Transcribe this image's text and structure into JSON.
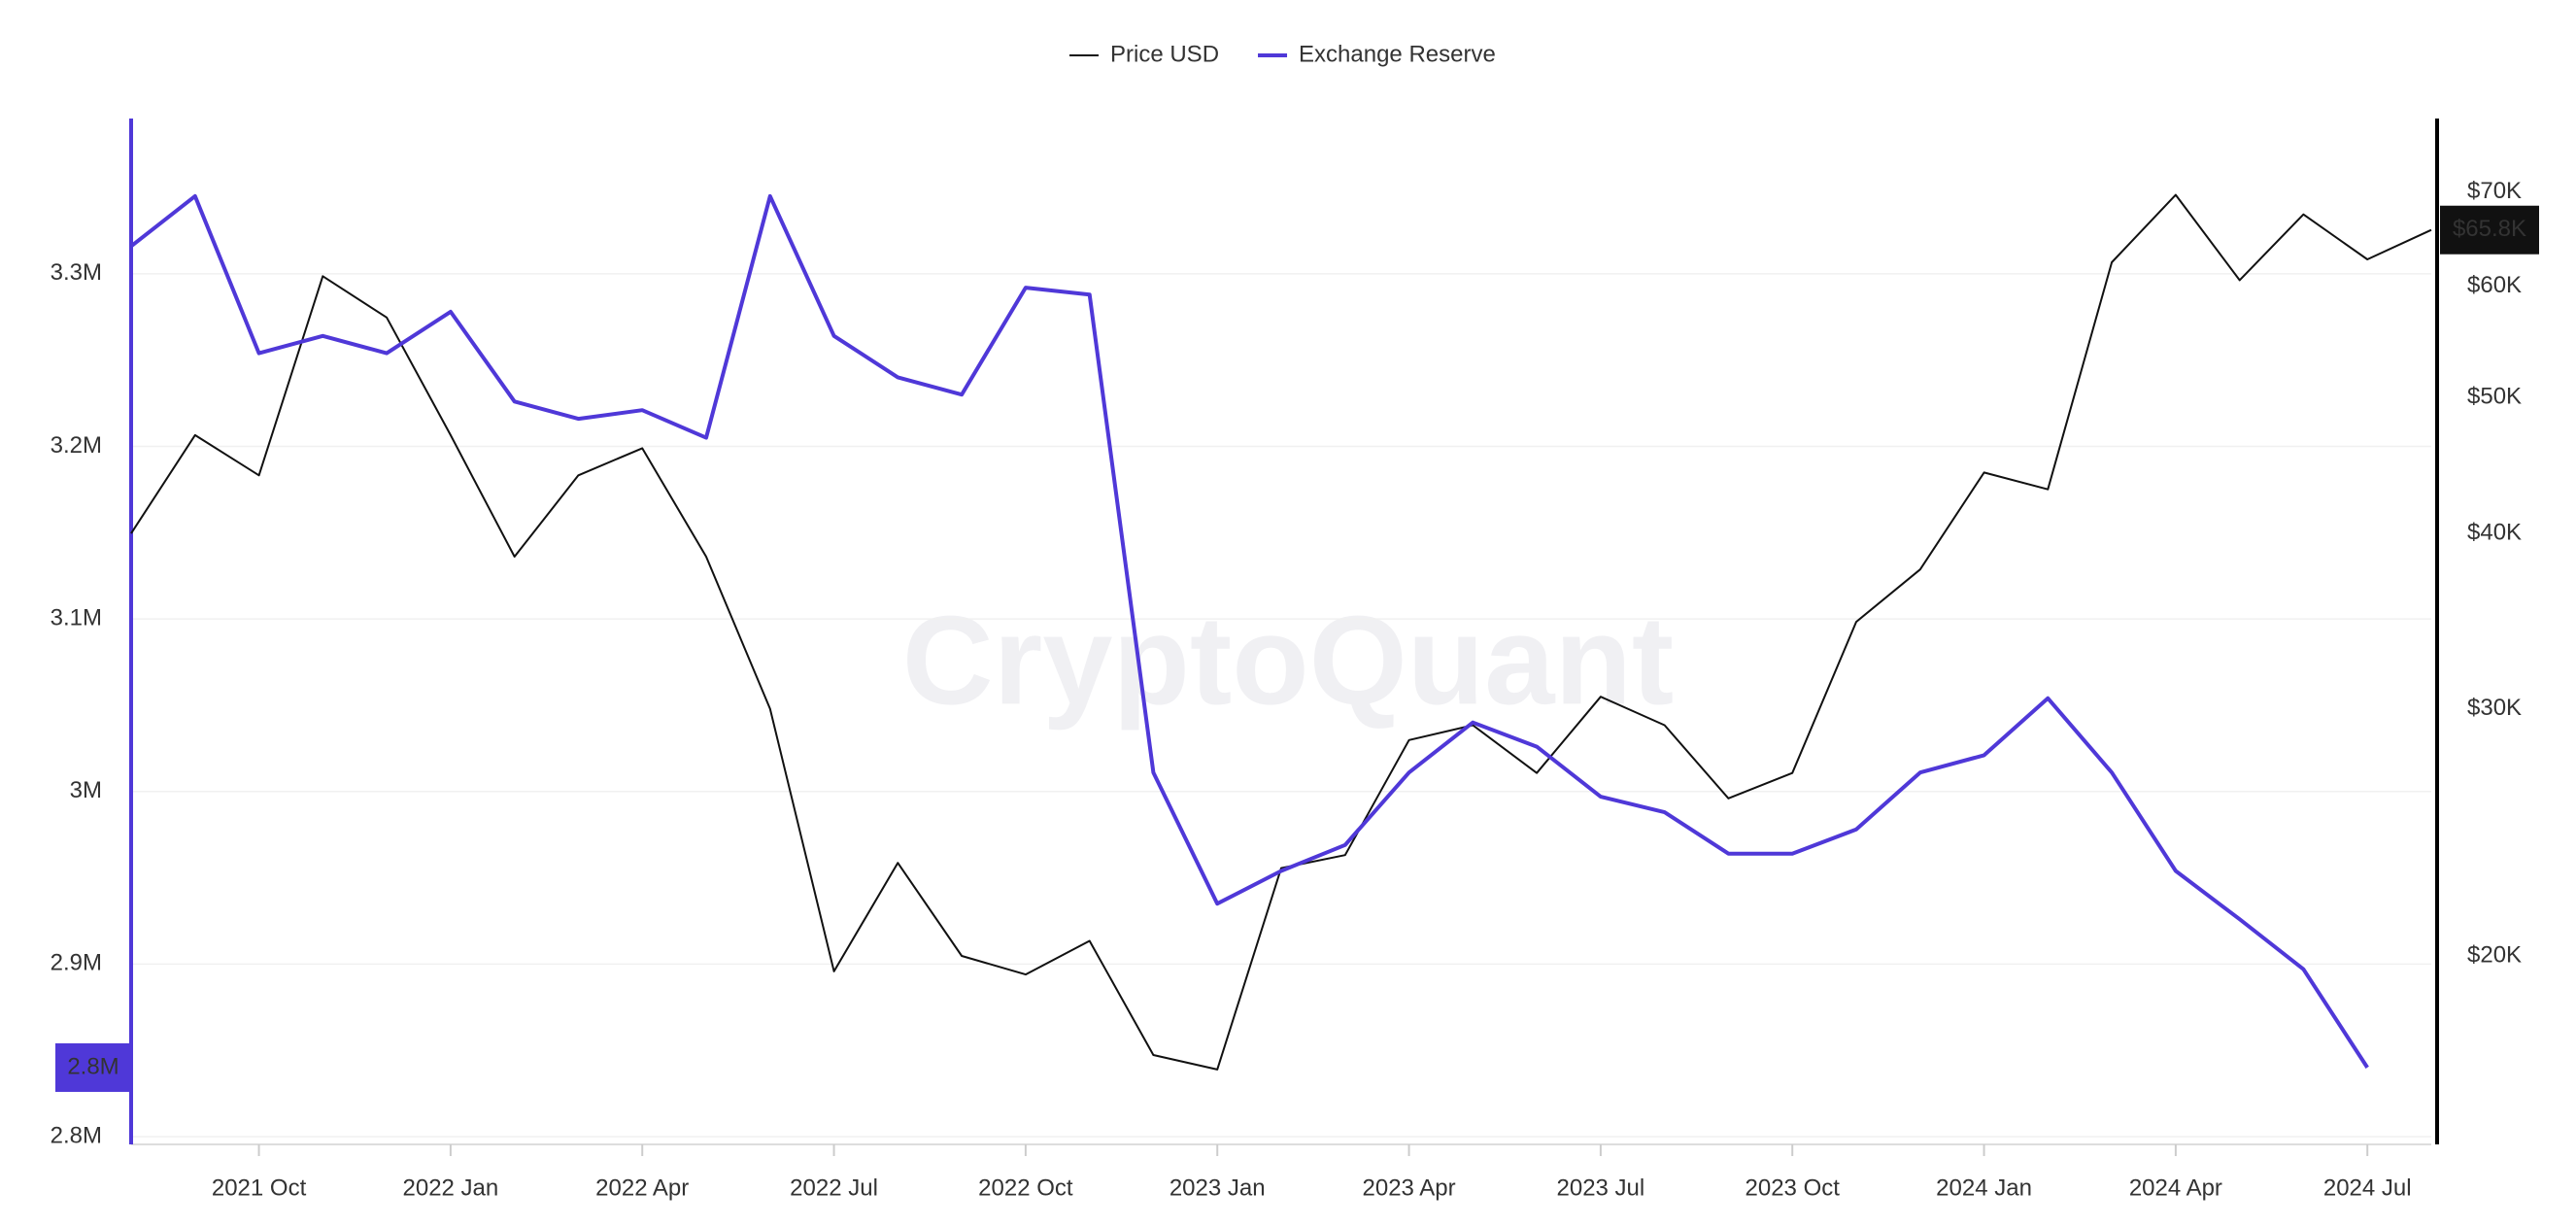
{
  "chart_data": {
    "type": "line",
    "watermark": "CryptoQuant",
    "x": [
      "2021-08",
      "2021-09",
      "2021-10",
      "2021-11",
      "2021-12",
      "2022-01",
      "2022-02",
      "2022-03",
      "2022-04",
      "2022-05",
      "2022-06",
      "2022-07",
      "2022-08",
      "2022-09",
      "2022-10",
      "2022-11",
      "2022-12",
      "2023-01",
      "2023-02",
      "2023-03",
      "2023-04",
      "2023-05",
      "2023-06",
      "2023-07",
      "2023-08",
      "2023-09",
      "2023-10",
      "2023-11",
      "2023-12",
      "2024-01",
      "2024-02",
      "2024-03",
      "2024-04",
      "2024-05",
      "2024-06",
      "2024-07",
      "2024-08"
    ],
    "xlim": [
      "2021-08",
      "2024-08"
    ],
    "xticks": [
      {
        "value": "2021-10",
        "label": "2021 Oct"
      },
      {
        "value": "2022-01",
        "label": "2022 Jan"
      },
      {
        "value": "2022-04",
        "label": "2022 Apr"
      },
      {
        "value": "2022-07",
        "label": "2022 Jul"
      },
      {
        "value": "2022-10",
        "label": "2022 Oct"
      },
      {
        "value": "2023-01",
        "label": "2023 Jan"
      },
      {
        "value": "2023-04",
        "label": "2023 Apr"
      },
      {
        "value": "2023-07",
        "label": "2023 Jul"
      },
      {
        "value": "2023-10",
        "label": "2023 Oct"
      },
      {
        "value": "2024-01",
        "label": "2024 Jan"
      },
      {
        "value": "2024-04",
        "label": "2024 Apr"
      },
      {
        "value": "2024-07",
        "label": "2024 Jul"
      }
    ],
    "series": [
      {
        "name": "Price USD",
        "color": "#111111",
        "axis": "y2",
        "values": [
          40000,
          47000,
          44000,
          61000,
          57000,
          47000,
          38500,
          44000,
          46000,
          38500,
          30000,
          19500,
          23300,
          20000,
          19400,
          20500,
          17000,
          16600,
          23100,
          23600,
          28500,
          29200,
          27000,
          30600,
          29200,
          25900,
          27000,
          34600,
          37700,
          44200,
          43000,
          62400,
          69700,
          60600,
          67500,
          62700,
          65800
        ]
      },
      {
        "name": "Exchange Reserve",
        "color": "#4f38d8",
        "axis": "y",
        "values": [
          3316000,
          3345000,
          3254000,
          3264000,
          3254000,
          3278000,
          3226000,
          3216000,
          3221000,
          3205000,
          3345000,
          3264000,
          3240000,
          3230000,
          3292000,
          3288000,
          3011000,
          2935000,
          2954000,
          2969000,
          3011000,
          3040000,
          3026000,
          2997000,
          2988000,
          2964000,
          2964000,
          2978000,
          3011000,
          3021000,
          3054000,
          3011000,
          2954000,
          2926000,
          2897000,
          2840000,
          null
        ]
      }
    ],
    "ylim": [
      2800000,
      3390000
    ],
    "yticks": [
      {
        "value": 2800000,
        "label": "2.8M"
      },
      {
        "value": 2900000,
        "label": "2.9M"
      },
      {
        "value": 3000000,
        "label": "3M"
      },
      {
        "value": 3100000,
        "label": "3.1M"
      },
      {
        "value": 3200000,
        "label": "3.2M"
      },
      {
        "value": 3300000,
        "label": "3.3M"
      }
    ],
    "y2lim": [
      14870,
      79000
    ],
    "y2log": true,
    "y2ticks": [
      {
        "value": 20000,
        "label": "$20K"
      },
      {
        "value": 30000,
        "label": "$30K"
      },
      {
        "value": 40000,
        "label": "$40K"
      },
      {
        "value": 50000,
        "label": "$50K"
      },
      {
        "value": 60000,
        "label": "$60K"
      },
      {
        "value": 70000,
        "label": "$70K"
      }
    ],
    "y_marker": {
      "value": 2840000,
      "label": "2.8M"
    },
    "y2_marker": {
      "value": 65800,
      "label": "$65.8K"
    },
    "grid": true,
    "legend": "top"
  }
}
